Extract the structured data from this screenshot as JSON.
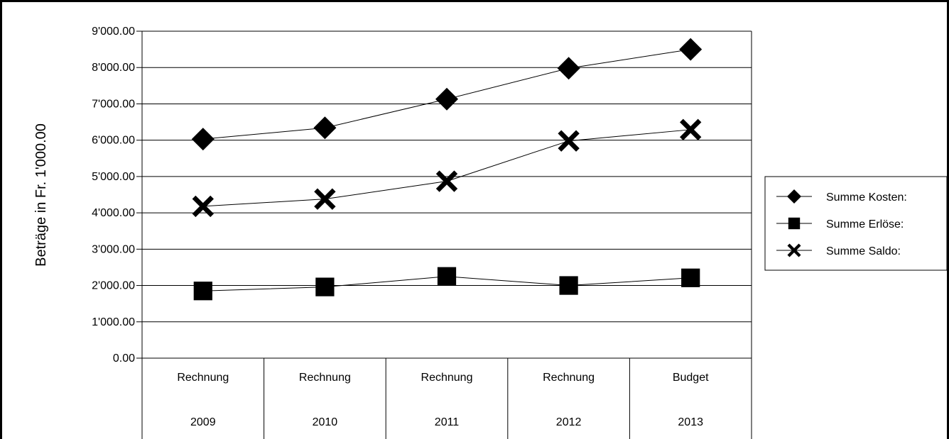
{
  "chart_data": {
    "type": "line",
    "title": "",
    "xlabel": "",
    "ylabel": "Beträge in Fr. 1'000.00",
    "ylim": [
      0,
      9000
    ],
    "ytick_labels": [
      "0.00",
      "1'000.00",
      "2'000.00",
      "3'000.00",
      "4'000.00",
      "5'000.00",
      "6'000.00",
      "7'000.00",
      "8'000.00",
      "9'000.00"
    ],
    "categories": [
      {
        "line1": "Rechnung",
        "line2": "2009"
      },
      {
        "line1": "Rechnung",
        "line2": "2010"
      },
      {
        "line1": "Rechnung",
        "line2": "2011"
      },
      {
        "line1": "Rechnung",
        "line2": "2012"
      },
      {
        "line1": "Budget",
        "line2": "2013"
      }
    ],
    "grid": true,
    "legend_position": "right",
    "series": [
      {
        "name": "Summe Kosten:",
        "marker": "diamond",
        "color": "#000000",
        "values": [
          6030,
          6340,
          7130,
          7980,
          8500
        ]
      },
      {
        "name": "Summe Erlöse:",
        "marker": "square",
        "color": "#000000",
        "values": [
          1850,
          1960,
          2250,
          2000,
          2210
        ]
      },
      {
        "name": "Summe Saldo:",
        "marker": "x",
        "color": "#000000",
        "values": [
          4180,
          4380,
          4870,
          5980,
          6290
        ]
      }
    ]
  }
}
